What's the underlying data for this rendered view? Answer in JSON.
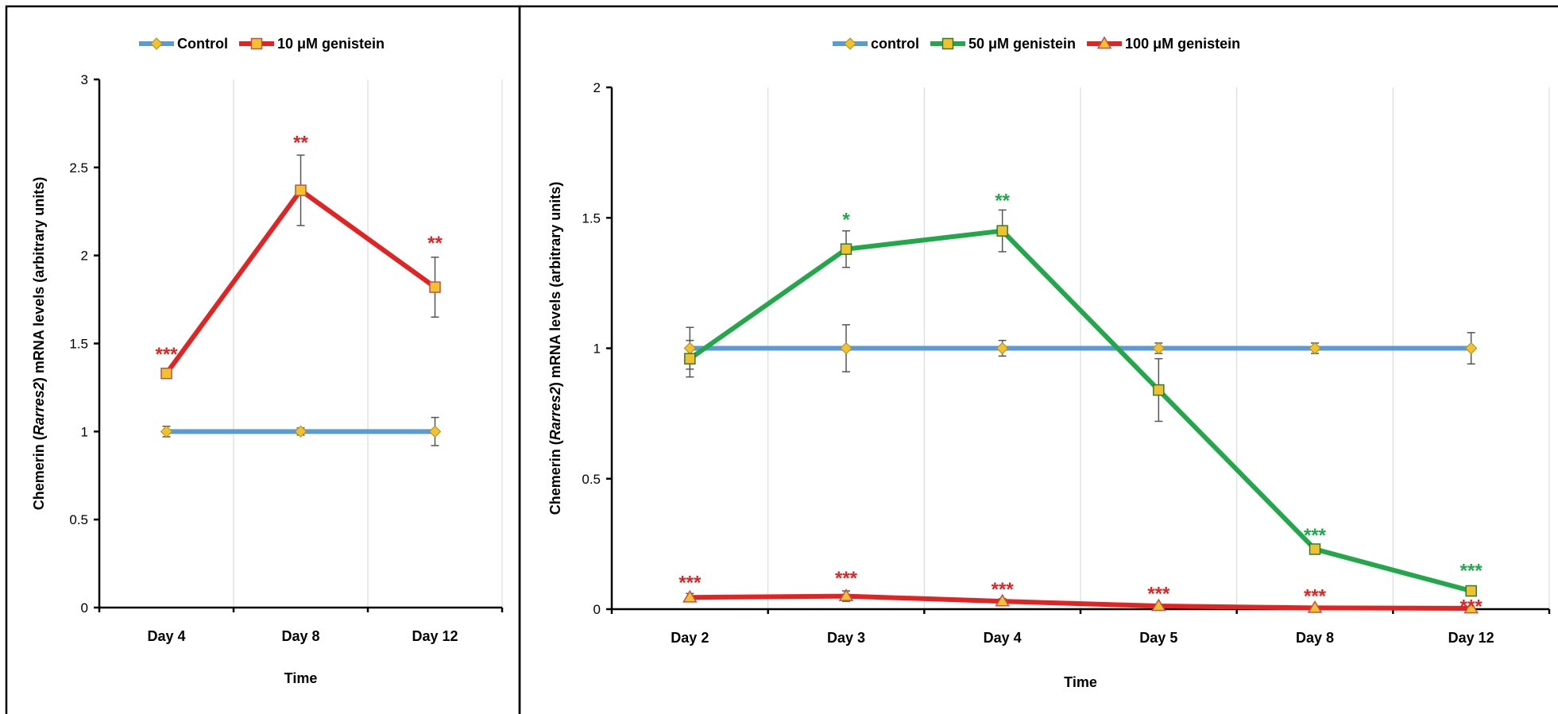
{
  "colors": {
    "control": "#5B9BD5",
    "control_marker": "#F2C12E",
    "red": "#E32222",
    "green": "#22A74A",
    "square_fill": "#F2C12E",
    "marker_stroke_red": "#C0504D",
    "marker_stroke_green": "#2E7D32"
  },
  "chart_data": [
    {
      "type": "line",
      "ylabel_prefix": "Chemerin (",
      "ylabel_gene": "Rarres2",
      "ylabel_suffix": ") mRNA levels (arbitrary units)",
      "xlabel": "Time",
      "categories": [
        "Day 4",
        "Day 8",
        "Day 12"
      ],
      "ylim": [
        0,
        3
      ],
      "yticks": [
        "0",
        "0.5",
        "1",
        "1.5",
        "2",
        "2.5",
        "3"
      ],
      "ytick_values": [
        0,
        0.5,
        1,
        1.5,
        2,
        2.5,
        3
      ],
      "grid": "vertical",
      "legend_position": "top",
      "series": [
        {
          "name": "Control",
          "color_key": "control",
          "marker": "diamond",
          "values": [
            1.0,
            1.0,
            1.0
          ],
          "errors": [
            0.03,
            0.02,
            0.08
          ],
          "significance": [
            "",
            "",
            ""
          ]
        },
        {
          "name": "10 μM genistein",
          "color_key": "red",
          "marker": "square",
          "values": [
            1.33,
            2.37,
            1.82
          ],
          "errors": [
            0.02,
            0.2,
            0.17
          ],
          "significance": [
            "***",
            "**",
            "**"
          ]
        }
      ]
    },
    {
      "type": "line",
      "ylabel_prefix": "Chemerin (",
      "ylabel_gene": "Rarres2",
      "ylabel_suffix": ") mRNA levels (arbitrary units)",
      "xlabel": "Time",
      "categories": [
        "Day 2",
        "Day 3",
        "Day 4",
        "Day 5",
        "Day 8",
        "Day 12"
      ],
      "ylim": [
        0,
        2
      ],
      "yticks": [
        "0",
        "0.5",
        "1",
        "1.5",
        "2"
      ],
      "ytick_values": [
        0,
        0.5,
        1,
        1.5,
        2
      ],
      "grid": "vertical",
      "legend_position": "top",
      "series": [
        {
          "name": "control",
          "color_key": "control",
          "marker": "diamond",
          "values": [
            1.0,
            1.0,
            1.0,
            1.0,
            1.0,
            1.0
          ],
          "errors": [
            0.08,
            0.09,
            0.03,
            0.02,
            0.02,
            0.06
          ],
          "significance": [
            "",
            "",
            "",
            "",
            "",
            ""
          ]
        },
        {
          "name": "50 μM genistein",
          "color_key": "green",
          "marker": "square",
          "values": [
            0.96,
            1.38,
            1.45,
            0.84,
            0.23,
            0.07
          ],
          "errors": [
            0.07,
            0.07,
            0.08,
            0.12,
            0.01,
            0.01
          ],
          "significance": [
            "",
            "*",
            "**",
            "",
            "***",
            "***"
          ]
        },
        {
          "name": "100 μM genistein",
          "color_key": "red",
          "marker": "triangle",
          "values": [
            0.045,
            0.05,
            0.03,
            0.012,
            0.005,
            0.003
          ],
          "errors": [
            0.015,
            0.02,
            0.01,
            0.005,
            0.003,
            0.002
          ],
          "significance": [
            "***",
            "***",
            "***",
            "***",
            "***",
            "***"
          ]
        }
      ]
    }
  ]
}
